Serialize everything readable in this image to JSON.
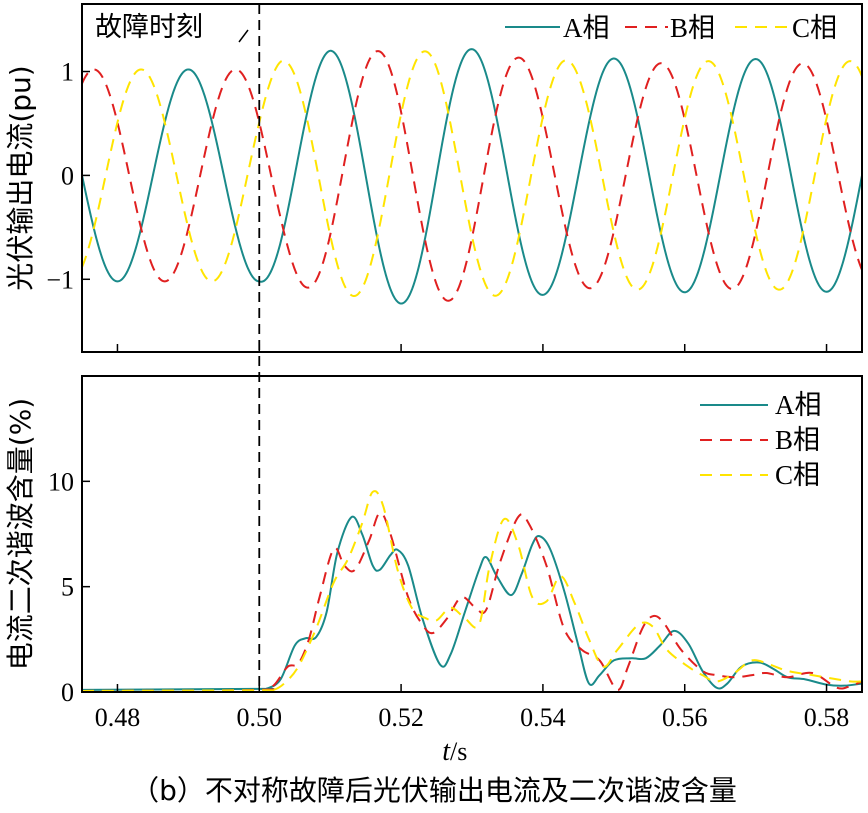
{
  "caption": "（b）不对称故障后光伏输出电流及二次谐波含量",
  "xlabel_t": "t",
  "xlabel_unit": "/s",
  "chart_data": [
    {
      "type": "line",
      "ylabel": "光伏输出电流(pu)",
      "xlim": [
        0.475,
        0.585
      ],
      "ylim": [
        -1.7,
        1.65
      ],
      "xticks": [
        0.48,
        0.5,
        0.52,
        0.54,
        0.56,
        0.58
      ],
      "yticks": [
        -1,
        0,
        1
      ],
      "ytick_labels": [
        "−1",
        "0",
        "1"
      ],
      "grid": false,
      "legend": "top-right",
      "annotation": "故障时刻",
      "fault_time": 0.5,
      "frequency_hz": 50,
      "series": [
        {
          "name": "A相",
          "color": "#1a8a8a",
          "dash": "solid",
          "phase_deg": -90,
          "peaks": [
            [
              0.475,
              1.02
            ],
            [
              0.5,
              1.02
            ],
            [
              0.503,
              1.1
            ],
            [
              0.51,
              1.2
            ],
            [
              0.525,
              1.25
            ],
            [
              0.535,
              1.18
            ],
            [
              0.545,
              1.12
            ],
            [
              0.555,
              1.13
            ],
            [
              0.565,
              1.12
            ],
            [
              0.575,
              1.12
            ],
            [
              0.585,
              1.12
            ]
          ]
        },
        {
          "name": "B相",
          "color": "#e02020",
          "dash": "dashed",
          "phase_deg": -210,
          "peaks": [
            [
              0.475,
              1.02
            ],
            [
              0.5,
              1.02
            ],
            [
              0.503,
              1.0
            ],
            [
              0.51,
              1.15
            ],
            [
              0.52,
              1.22
            ],
            [
              0.53,
              1.2
            ],
            [
              0.54,
              1.1
            ],
            [
              0.55,
              1.08
            ],
            [
              0.56,
              1.08
            ],
            [
              0.57,
              1.1
            ],
            [
              0.585,
              1.05
            ]
          ]
        },
        {
          "name": "C相",
          "color": "#ffe400",
          "dash": "dashed",
          "phase_deg": 30,
          "peaks": [
            [
              0.475,
              1.02
            ],
            [
              0.5,
              1.02
            ],
            [
              0.503,
              1.1
            ],
            [
              0.51,
              1.15
            ],
            [
              0.525,
              1.2
            ],
            [
              0.535,
              1.15
            ],
            [
              0.545,
              1.1
            ],
            [
              0.555,
              1.1
            ],
            [
              0.565,
              1.1
            ],
            [
              0.575,
              1.1
            ],
            [
              0.585,
              1.1
            ]
          ]
        }
      ]
    },
    {
      "type": "line",
      "ylabel": "电流二次谐波含量(%)",
      "xlim": [
        0.475,
        0.585
      ],
      "ylim": [
        0,
        15
      ],
      "xticks": [
        0.48,
        0.5,
        0.52,
        0.54,
        0.56,
        0.58
      ],
      "xtick_labels": [
        "0.48",
        "0.50",
        "0.52",
        "0.54",
        "0.56",
        "0.58"
      ],
      "yticks": [
        0,
        5,
        10
      ],
      "ytick_labels": [
        "0",
        "5",
        "10"
      ],
      "grid": false,
      "legend": "top-right",
      "series": [
        {
          "name": "A相",
          "color": "#1a8a8a",
          "dash": "solid",
          "points": [
            [
              0.475,
              0.1
            ],
            [
              0.5,
              0.15
            ],
            [
              0.501,
              0.15
            ],
            [
              0.503,
              0.6
            ],
            [
              0.505,
              2.2
            ],
            [
              0.5065,
              2.55
            ],
            [
              0.508,
              2.6
            ],
            [
              0.5095,
              3.8
            ],
            [
              0.511,
              6.6
            ],
            [
              0.513,
              8.3
            ],
            [
              0.5145,
              7.5
            ],
            [
              0.516,
              6
            ],
            [
              0.517,
              5.8
            ],
            [
              0.5185,
              6.5
            ],
            [
              0.5195,
              6.75
            ],
            [
              0.521,
              6.0
            ],
            [
              0.523,
              3.5
            ],
            [
              0.5255,
              1.3
            ],
            [
              0.527,
              1.8
            ],
            [
              0.529,
              3.8
            ],
            [
              0.531,
              5.8
            ],
            [
              0.532,
              6.4
            ],
            [
              0.5335,
              5.5
            ],
            [
              0.5355,
              4.6
            ],
            [
              0.537,
              5.6
            ],
            [
              0.5385,
              7.0
            ],
            [
              0.5395,
              7.4
            ],
            [
              0.541,
              6.8
            ],
            [
              0.543,
              4.8
            ],
            [
              0.545,
              2.2
            ],
            [
              0.5465,
              0.4
            ],
            [
              0.548,
              0.8
            ],
            [
              0.55,
              1.5
            ],
            [
              0.5525,
              1.6
            ],
            [
              0.5545,
              1.6
            ],
            [
              0.5565,
              2.2
            ],
            [
              0.5585,
              2.9
            ],
            [
              0.5605,
              2.3
            ],
            [
              0.5625,
              1.0
            ],
            [
              0.5645,
              0.2
            ],
            [
              0.566,
              0.4
            ],
            [
              0.568,
              1.2
            ],
            [
              0.5705,
              1.4
            ],
            [
              0.5725,
              1.1
            ],
            [
              0.5745,
              0.7
            ],
            [
              0.577,
              0.6
            ],
            [
              0.58,
              0.35
            ],
            [
              0.5825,
              0.3
            ],
            [
              0.585,
              0.4
            ]
          ]
        },
        {
          "name": "B相",
          "color": "#e02020",
          "dash": "dashed",
          "points": [
            [
              0.475,
              0.05
            ],
            [
              0.5,
              0.1
            ],
            [
              0.502,
              0.3
            ],
            [
              0.504,
              1.2
            ],
            [
              0.5055,
              1.35
            ],
            [
              0.507,
              2.5
            ],
            [
              0.5085,
              4.5
            ],
            [
              0.5105,
              6.8
            ],
            [
              0.512,
              6.0
            ],
            [
              0.5135,
              5.8
            ],
            [
              0.5155,
              7.2
            ],
            [
              0.517,
              8.5
            ],
            [
              0.5185,
              7.5
            ],
            [
              0.521,
              4.5
            ],
            [
              0.523,
              3.2
            ],
            [
              0.5245,
              2.8
            ],
            [
              0.5265,
              3.5
            ],
            [
              0.5285,
              4.5
            ],
            [
              0.5305,
              4.0
            ],
            [
              0.532,
              3.9
            ],
            [
              0.534,
              6.2
            ],
            [
              0.5365,
              8.3
            ],
            [
              0.538,
              8.0
            ],
            [
              0.5405,
              6.0
            ],
            [
              0.543,
              3.0
            ],
            [
              0.5455,
              2.0
            ],
            [
              0.548,
              1.5
            ],
            [
              0.5505,
              0.1
            ],
            [
              0.552,
              1.2
            ],
            [
              0.554,
              3.0
            ],
            [
              0.5555,
              3.6
            ],
            [
              0.557,
              3.3
            ],
            [
              0.5595,
              2.0
            ],
            [
              0.5625,
              1.0
            ],
            [
              0.5645,
              0.8
            ],
            [
              0.567,
              0.7
            ],
            [
              0.5695,
              0.8
            ],
            [
              0.5715,
              0.9
            ],
            [
              0.5745,
              0.7
            ],
            [
              0.578,
              0.9
            ],
            [
              0.5815,
              0.2
            ],
            [
              0.5835,
              0.3
            ],
            [
              0.585,
              0.5
            ]
          ]
        },
        {
          "name": "C相",
          "color": "#ffe400",
          "dash": "dashed",
          "points": [
            [
              0.475,
              0.05
            ],
            [
              0.5,
              0.08
            ],
            [
              0.502,
              0.1
            ],
            [
              0.5035,
              0.4
            ],
            [
              0.5055,
              1.2
            ],
            [
              0.508,
              3.0
            ],
            [
              0.5105,
              5.2
            ],
            [
              0.5125,
              6.3
            ],
            [
              0.5145,
              8.0
            ],
            [
              0.516,
              9.5
            ],
            [
              0.5175,
              8.8
            ],
            [
              0.5195,
              5.8
            ],
            [
              0.5215,
              4.0
            ],
            [
              0.5235,
              3.5
            ],
            [
              0.525,
              3.4
            ],
            [
              0.527,
              4.0
            ],
            [
              0.529,
              3.5
            ],
            [
              0.531,
              3.2
            ],
            [
              0.5325,
              6.0
            ],
            [
              0.5345,
              8.2
            ],
            [
              0.5365,
              7.0
            ],
            [
              0.5385,
              4.5
            ],
            [
              0.5405,
              4.3
            ],
            [
              0.5425,
              5.5
            ],
            [
              0.5445,
              4.2
            ],
            [
              0.5465,
              2.5
            ],
            [
              0.5485,
              1.2
            ],
            [
              0.5505,
              2.0
            ],
            [
              0.5535,
              3.2
            ],
            [
              0.5555,
              3.1
            ],
            [
              0.5575,
              2.0
            ],
            [
              0.5605,
              1.2
            ],
            [
              0.5625,
              0.8
            ],
            [
              0.5645,
              0.5
            ],
            [
              0.567,
              0.9
            ],
            [
              0.5695,
              1.5
            ],
            [
              0.572,
              1.3
            ],
            [
              0.5745,
              1.0
            ],
            [
              0.578,
              0.8
            ],
            [
              0.5815,
              0.6
            ],
            [
              0.5835,
              0.5
            ],
            [
              0.585,
              0.5
            ]
          ]
        }
      ]
    }
  ]
}
